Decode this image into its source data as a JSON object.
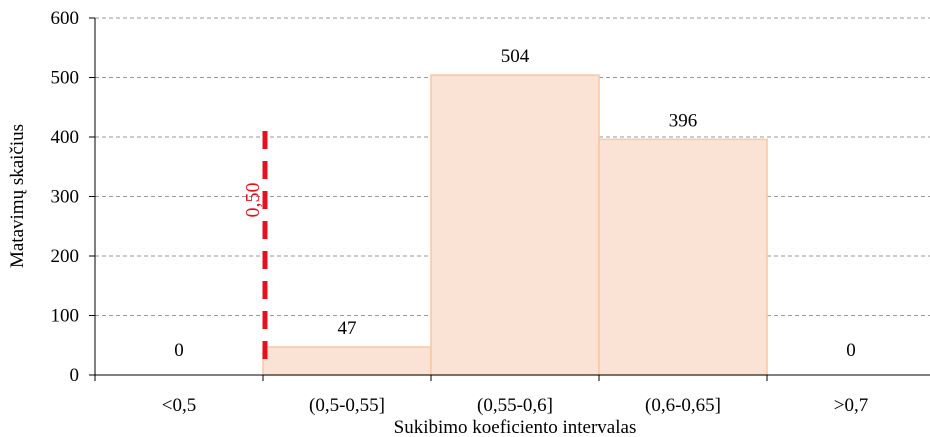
{
  "chart_data": {
    "type": "bar",
    "title": "",
    "xlabel": "Sukibimo koeficiento intervalas",
    "ylabel": "Matavimų skaičius",
    "categories": [
      "<0,5",
      "(0,5-0,55]",
      "(0,55-0,6]",
      "(0,6-0,65]",
      ">0,7"
    ],
    "values": [
      0,
      47,
      504,
      396,
      0
    ],
    "data_labels": [
      "0",
      "47",
      "504",
      "396",
      "0"
    ],
    "ylim": [
      0,
      600
    ],
    "yticks": [
      0,
      100,
      200,
      300,
      400,
      500,
      600
    ],
    "grid": "horizontal dashed",
    "reference_line": {
      "label": "0,50",
      "color": "#e8101e",
      "style": "dashed",
      "top_value": 410
    },
    "colors": {
      "bar_fill": "#fae3d4",
      "bar_stroke": "#f6c7a3",
      "grid": "#9a9a9a"
    }
  }
}
